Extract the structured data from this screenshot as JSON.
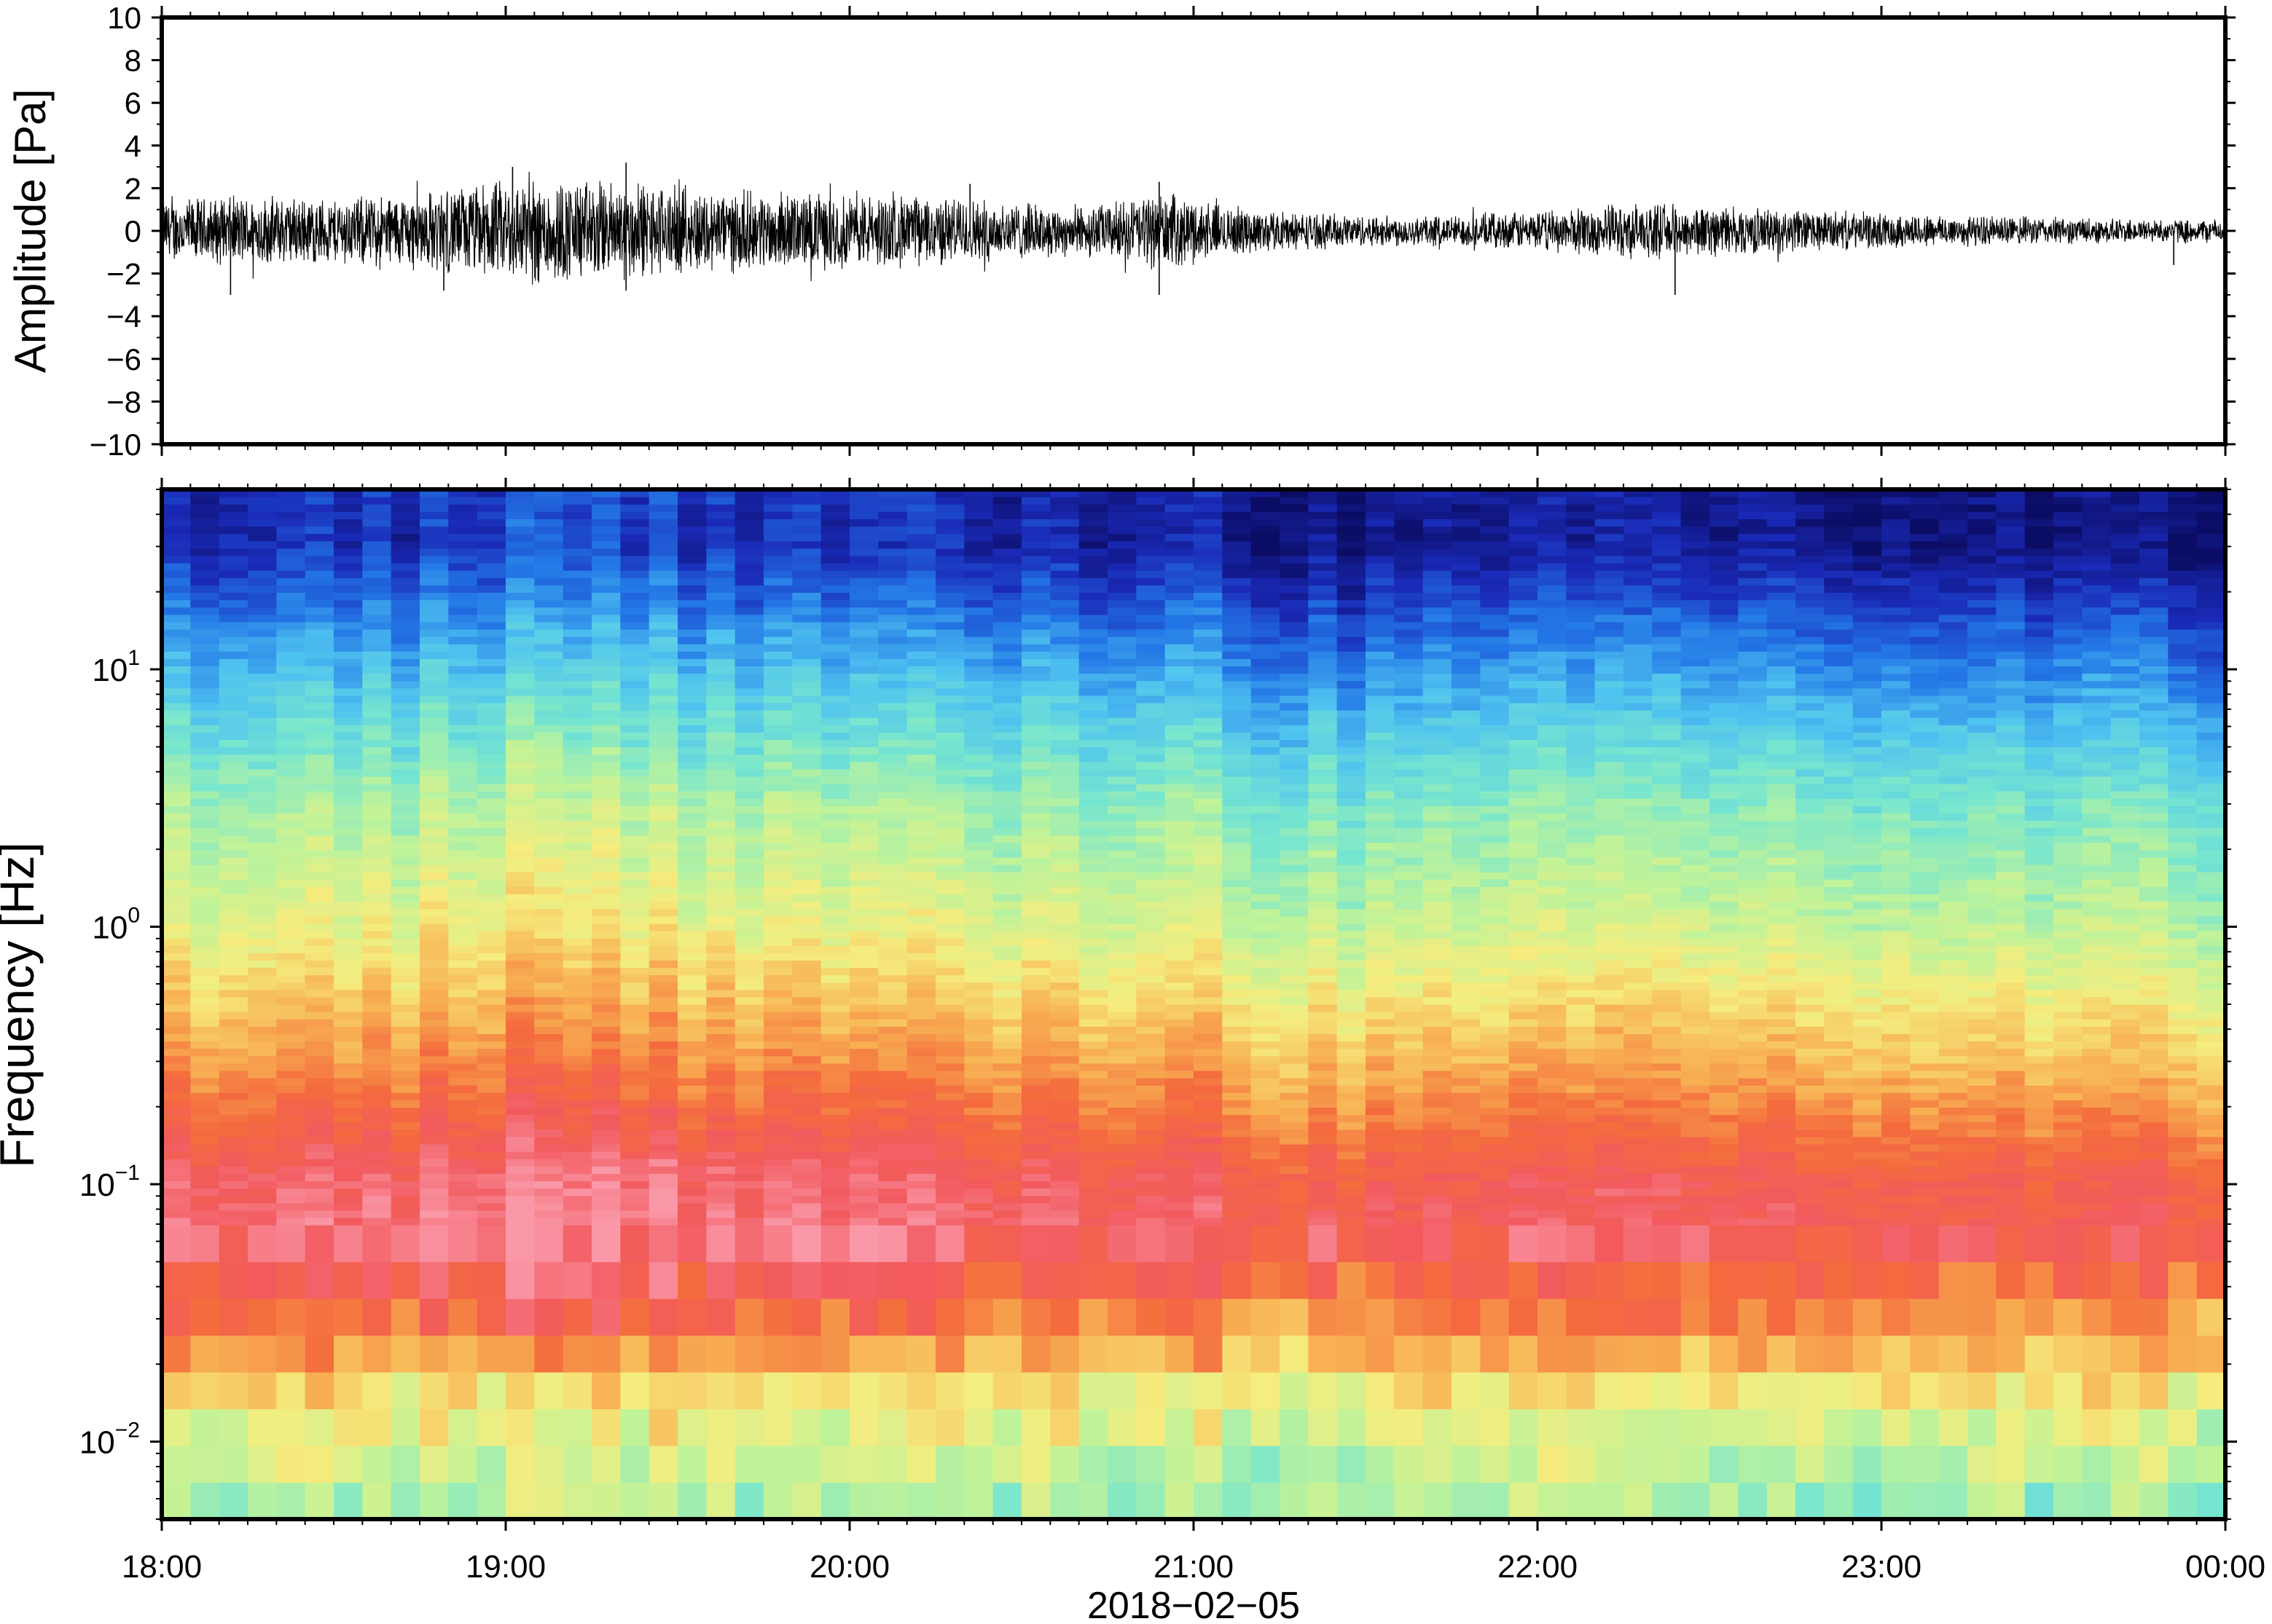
{
  "chart_data": [
    {
      "type": "line",
      "panel": "waveform",
      "ylabel": "Amplitude [Pa]",
      "ylim": [
        -10,
        10
      ],
      "yticks": [
        10,
        8,
        6,
        4,
        2,
        0,
        -2,
        -4,
        -6,
        -8,
        -10
      ],
      "ytick_labels": [
        "10",
        "8",
        "6",
        "4",
        "2",
        "0",
        "−2",
        "−4",
        "−6",
        "−8",
        "−10"
      ],
      "x_range_hours": [
        18,
        24
      ],
      "series_color": "#000000",
      "envelope": {
        "hours": [
          18.0,
          18.25,
          18.5,
          18.75,
          19.0,
          19.1,
          19.25,
          19.4,
          19.5,
          19.75,
          20.0,
          20.25,
          20.4,
          20.6,
          20.75,
          20.9,
          21.1,
          21.25,
          21.5,
          21.75,
          22.0,
          22.25,
          22.5,
          22.75,
          23.0,
          23.25,
          23.5,
          23.75,
          24.0
        ],
        "max_abs": [
          1.6,
          1.8,
          1.7,
          2.0,
          2.6,
          2.8,
          2.6,
          2.5,
          2.2,
          2.0,
          1.9,
          1.8,
          1.6,
          1.3,
          1.4,
          2.0,
          1.3,
          1.0,
          0.8,
          0.8,
          1.0,
          1.4,
          1.3,
          1.1,
          0.9,
          0.8,
          0.7,
          0.6,
          0.6
        ],
        "peaks": [
          {
            "hour": 18.2,
            "value": -3.0
          },
          {
            "hour": 18.82,
            "value": -2.8
          },
          {
            "hour": 19.02,
            "value": 3.0
          },
          {
            "hour": 19.35,
            "value": 3.2
          },
          {
            "hour": 19.35,
            "value": -2.8
          },
          {
            "hour": 20.35,
            "value": 2.2
          },
          {
            "hour": 20.9,
            "value": 2.3
          },
          {
            "hour": 20.9,
            "value": -3.0
          },
          {
            "hour": 22.4,
            "value": -3.0
          },
          {
            "hour": 23.85,
            "value": -1.6
          }
        ]
      }
    },
    {
      "type": "heatmap",
      "panel": "spectrogram",
      "ylabel": "Frequency [Hz]",
      "yscale": "log",
      "ylim": [
        0.005,
        50
      ],
      "ytick_labels": [
        {
          "value": 0.01,
          "base": "10",
          "exp": "−2"
        },
        {
          "value": 0.1,
          "base": "10",
          "exp": "−1"
        },
        {
          "value": 1,
          "base": "10",
          "exp": "0"
        },
        {
          "value": 10,
          "base": "10",
          "exp": "1"
        }
      ],
      "colormap": [
        "#0b0c63",
        "#1a2ab8",
        "#2377e6",
        "#4fc3f0",
        "#77e6cf",
        "#bff39a",
        "#f5ed7e",
        "#f8b153",
        "#f46b3d",
        "#f25a5e",
        "#fa98a8"
      ],
      "time_bins": 72,
      "description_of_bands": [
        {
          "freq_hz": 30,
          "level": 0.08
        },
        {
          "freq_hz": 10,
          "level": 0.27
        },
        {
          "freq_hz": 3,
          "level": 0.45
        },
        {
          "freq_hz": 1,
          "level": 0.55
        },
        {
          "freq_hz": 0.3,
          "level": 0.72
        },
        {
          "freq_hz": 0.1,
          "level": 0.9
        },
        {
          "freq_hz": 0.06,
          "level": 0.92
        },
        {
          "freq_hz": 0.03,
          "level": 0.78
        },
        {
          "freq_hz": 0.015,
          "level": 0.6
        },
        {
          "freq_hz": 0.006,
          "level": 0.48
        }
      ]
    }
  ],
  "xaxis": {
    "tick_labels": [
      "18:00",
      "19:00",
      "20:00",
      "21:00",
      "22:00",
      "23:00",
      "00:00"
    ],
    "date_label": "2018−02−05"
  }
}
